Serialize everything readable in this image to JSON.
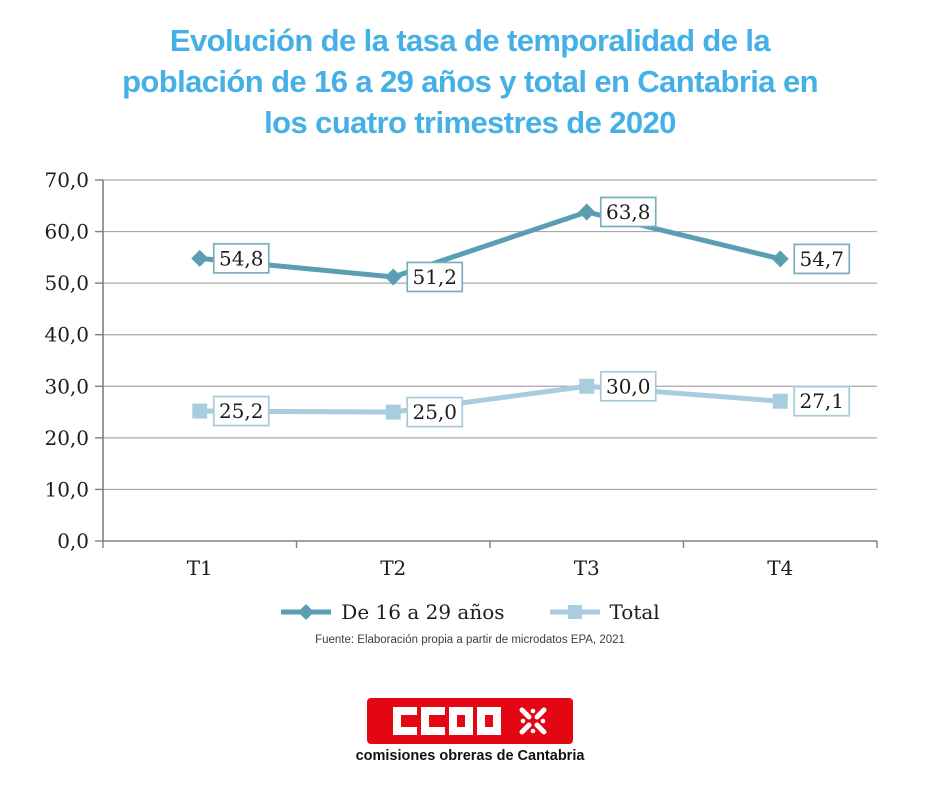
{
  "title": {
    "lines": [
      "Evolución de la tasa de temporalidad de la",
      "población de 16 a 29 años y total en Cantabria en",
      "los cuatro trimestres de 2020"
    ],
    "color": "#45b0e6"
  },
  "chart_data": {
    "type": "line",
    "title": "Evolución de la tasa de temporalidad de la población de 16 a 29 años y total en Cantabria en los cuatro trimestres de 2020",
    "categories": [
      "T1",
      "T2",
      "T3",
      "T4"
    ],
    "series": [
      {
        "name": "De 16 a 29 años",
        "values": [
          54.8,
          51.2,
          63.8,
          54.7
        ],
        "labels": [
          "54,8",
          "51,2",
          "63,8",
          "54,7"
        ],
        "color": "#5a9eb2",
        "marker": "diamond",
        "label_border_color": "#79aebe"
      },
      {
        "name": "Total",
        "values": [
          25.2,
          25.0,
          30.0,
          27.1
        ],
        "labels": [
          "25,2",
          "25,0",
          "30,0",
          "27,1"
        ],
        "color": "#a8cdde",
        "marker": "square",
        "label_border_color": "#a5cbd9"
      }
    ],
    "xlabel": "",
    "ylabel": "",
    "ylim": [
      0,
      70
    ],
    "ytick_step": 10,
    "ytick_labels": [
      "0,0",
      "10,0",
      "20,0",
      "30,0",
      "40,0",
      "50,0",
      "60,0",
      "70,0"
    ],
    "grid": true,
    "gridline_color": "#a8a8a8",
    "axis_color": "#808080",
    "legend_position": "bottom"
  },
  "source_note": "Fuente: Elaboración propia a partir de microdatos EPA, 2021",
  "footer": {
    "logo_text": "CCOO",
    "logo_color": "#e30613",
    "org_name": "comisiones obreras de Cantabria"
  }
}
